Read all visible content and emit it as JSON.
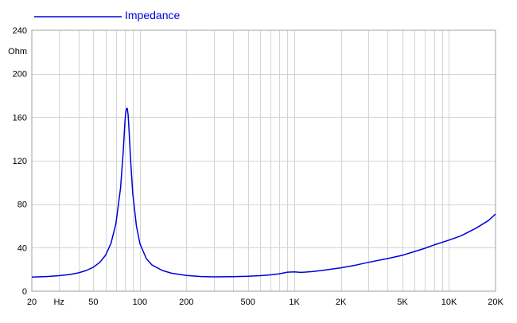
{
  "chart_data": {
    "type": "line",
    "x_scale": "log",
    "xlim": [
      20,
      20000
    ],
    "ylim": [
      0,
      240
    ],
    "grid": true,
    "legend": {
      "placement": "top-left"
    },
    "xlabel": "Hz",
    "ylabel": "Ohm",
    "x_tick_labels": [
      {
        "value": 20,
        "label": "20"
      },
      {
        "value": 50,
        "label": "50"
      },
      {
        "value": 100,
        "label": "100"
      },
      {
        "value": 200,
        "label": "200"
      },
      {
        "value": 500,
        "label": "500"
      },
      {
        "value": 1000,
        "label": "1K"
      },
      {
        "value": 2000,
        "label": "2K"
      },
      {
        "value": 5000,
        "label": "5K"
      },
      {
        "value": 10000,
        "label": "10K"
      },
      {
        "value": 20000,
        "label": "20K"
      }
    ],
    "y_tick_labels": [
      {
        "value": 0,
        "label": "0"
      },
      {
        "value": 40,
        "label": "40"
      },
      {
        "value": 80,
        "label": "80"
      },
      {
        "value": 120,
        "label": "120"
      },
      {
        "value": 160,
        "label": "160"
      },
      {
        "value": 200,
        "label": "200"
      },
      {
        "value": 240,
        "label": "240"
      }
    ],
    "series": [
      {
        "name": "Impedance",
        "color": "#0000dd",
        "points": [
          [
            20,
            13
          ],
          [
            25,
            13.5
          ],
          [
            30,
            14.3
          ],
          [
            35,
            15.3
          ],
          [
            40,
            16.8
          ],
          [
            45,
            19
          ],
          [
            50,
            22
          ],
          [
            55,
            26.5
          ],
          [
            60,
            33
          ],
          [
            65,
            44
          ],
          [
            70,
            62
          ],
          [
            75,
            95
          ],
          [
            78,
            128
          ],
          [
            80,
            155
          ],
          [
            81,
            164
          ],
          [
            82,
            168
          ],
          [
            83,
            168
          ],
          [
            84,
            162
          ],
          [
            85,
            150
          ],
          [
            87,
            122
          ],
          [
            90,
            90
          ],
          [
            95,
            60
          ],
          [
            100,
            44
          ],
          [
            110,
            30
          ],
          [
            120,
            24
          ],
          [
            140,
            19
          ],
          [
            160,
            16.5
          ],
          [
            200,
            14.5
          ],
          [
            250,
            13.5
          ],
          [
            300,
            13.2
          ],
          [
            400,
            13.3
          ],
          [
            500,
            13.7
          ],
          [
            600,
            14.3
          ],
          [
            700,
            15
          ],
          [
            800,
            16
          ],
          [
            900,
            17.5
          ],
          [
            1000,
            17.8
          ],
          [
            1100,
            17.3
          ],
          [
            1300,
            18
          ],
          [
            1500,
            19
          ],
          [
            2000,
            21.5
          ],
          [
            2500,
            24
          ],
          [
            3000,
            26.5
          ],
          [
            4000,
            30
          ],
          [
            5000,
            33
          ],
          [
            6000,
            36.5
          ],
          [
            7000,
            39.5
          ],
          [
            8000,
            42.5
          ],
          [
            10000,
            47
          ],
          [
            12000,
            51
          ],
          [
            15000,
            58
          ],
          [
            18000,
            65
          ],
          [
            20000,
            71
          ]
        ]
      }
    ]
  }
}
